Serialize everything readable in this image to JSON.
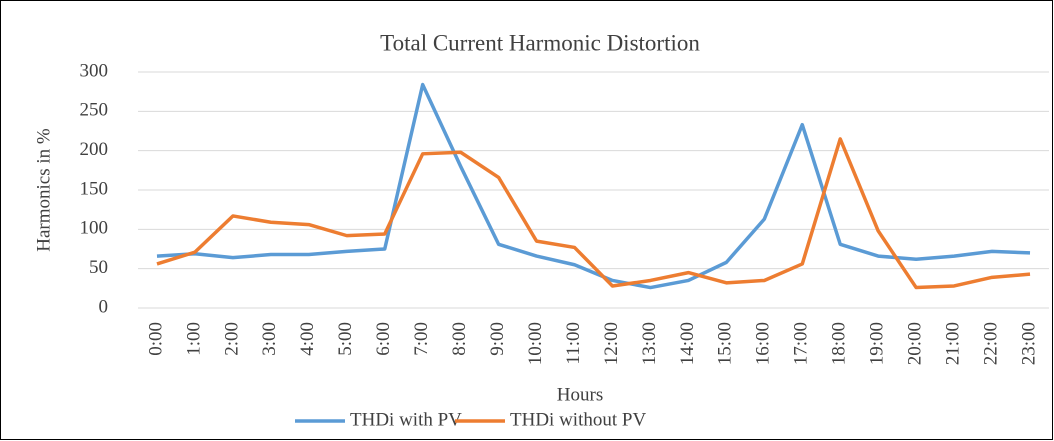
{
  "chart_data": {
    "type": "line",
    "title": "Total Current Harmonic Distortion",
    "x_label": "Hours",
    "y_label": "Harmonics in %",
    "categories": [
      "0:00",
      "1:00",
      "2:00",
      "3:00",
      "4:00",
      "5:00",
      "6:00",
      "7:00",
      "8:00",
      "9:00",
      "10:00",
      "11:00",
      "12:00",
      "13:00",
      "14:00",
      "15:00",
      "16:00",
      "17:00",
      "18:00",
      "19:00",
      "20:00",
      "21:00",
      "22:00",
      "23:00"
    ],
    "series": [
      {
        "name": "THDi with PV",
        "color": "#5b9bd5",
        "values": [
          66,
          69,
          64,
          68,
          68,
          72,
          75,
          284,
          180,
          81,
          66,
          55,
          35,
          26,
          35,
          58,
          113,
          233,
          81,
          66,
          62,
          66,
          72,
          70
        ]
      },
      {
        "name": "THDi without PV",
        "color": "#ed7d31",
        "values": [
          56,
          71,
          117,
          109,
          106,
          92,
          94,
          196,
          198,
          166,
          85,
          77,
          28,
          35,
          45,
          32,
          35,
          56,
          215,
          98,
          26,
          28,
          39,
          43
        ]
      }
    ],
    "ylim": [
      0,
      300
    ],
    "yticks": [
      0,
      50,
      100,
      150,
      200,
      250,
      300
    ],
    "grid": true,
    "legend": "bottom"
  }
}
